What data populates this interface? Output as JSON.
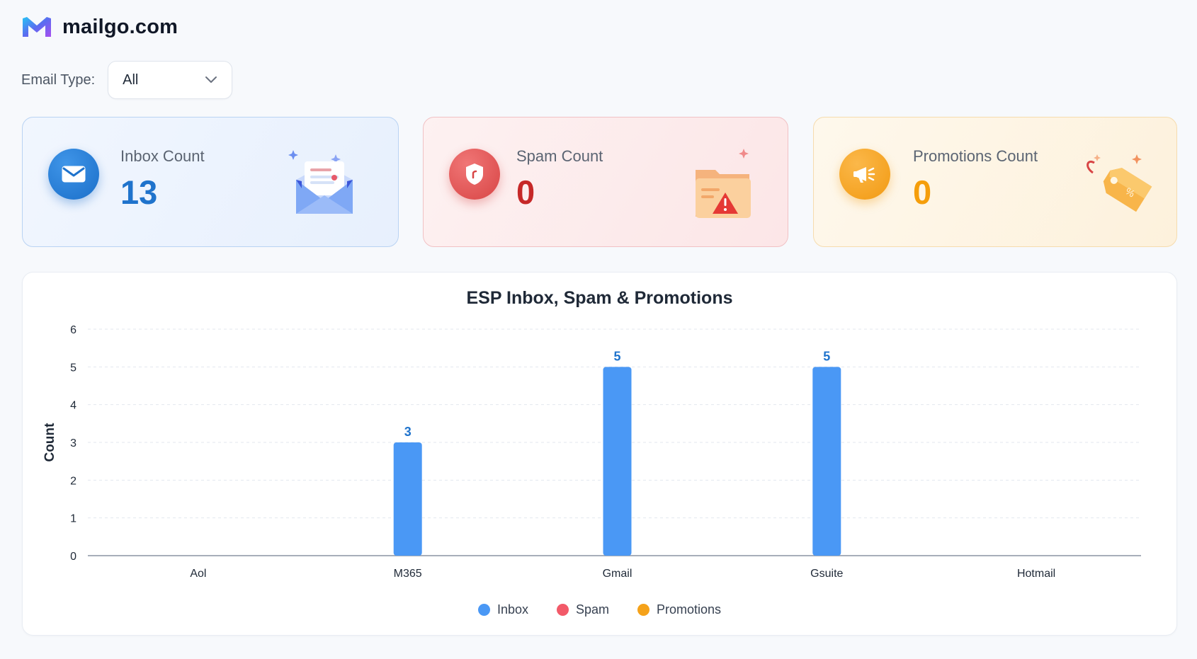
{
  "header": {
    "brand": "mailgo.com",
    "logo_icon": "mailgo-logo-icon"
  },
  "filter": {
    "label": "Email Type:",
    "selected": "All"
  },
  "cards": {
    "inbox": {
      "title": "Inbox Count",
      "count": "13",
      "icon": "envelope-icon",
      "illustration": "open-envelope-illustration",
      "color": "#1f73cc"
    },
    "spam": {
      "title": "Spam Count",
      "count": "0",
      "icon": "shield-icon",
      "illustration": "folder-warning-illustration",
      "color": "#c62828"
    },
    "promotions": {
      "title": "Promotions Count",
      "count": "0",
      "icon": "megaphone-icon",
      "illustration": "price-tag-illustration",
      "color": "#f59e0b"
    }
  },
  "chart": {
    "title": "ESP Inbox, Spam & Promotions"
  },
  "chart_data": {
    "type": "bar",
    "title": "ESP Inbox, Spam & Promotions",
    "xlabel": "",
    "ylabel": "Count",
    "ylim": [
      0,
      6
    ],
    "yticks": [
      0,
      1,
      2,
      3,
      4,
      5,
      6
    ],
    "grid": true,
    "legend_position": "bottom",
    "categories": [
      "Aol",
      "M365",
      "Gmail",
      "Gsuite",
      "Hotmail"
    ],
    "series": [
      {
        "name": "Inbox",
        "values": [
          0,
          3,
          5,
          5,
          0
        ],
        "color": "#4a98f5",
        "label_color": "#1f73cc"
      },
      {
        "name": "Spam",
        "values": [
          0,
          0,
          0,
          0,
          0
        ],
        "color": "#f25a69"
      },
      {
        "name": "Promotions",
        "values": [
          0,
          0,
          0,
          0,
          0
        ],
        "color": "#f5a21a"
      }
    ]
  }
}
